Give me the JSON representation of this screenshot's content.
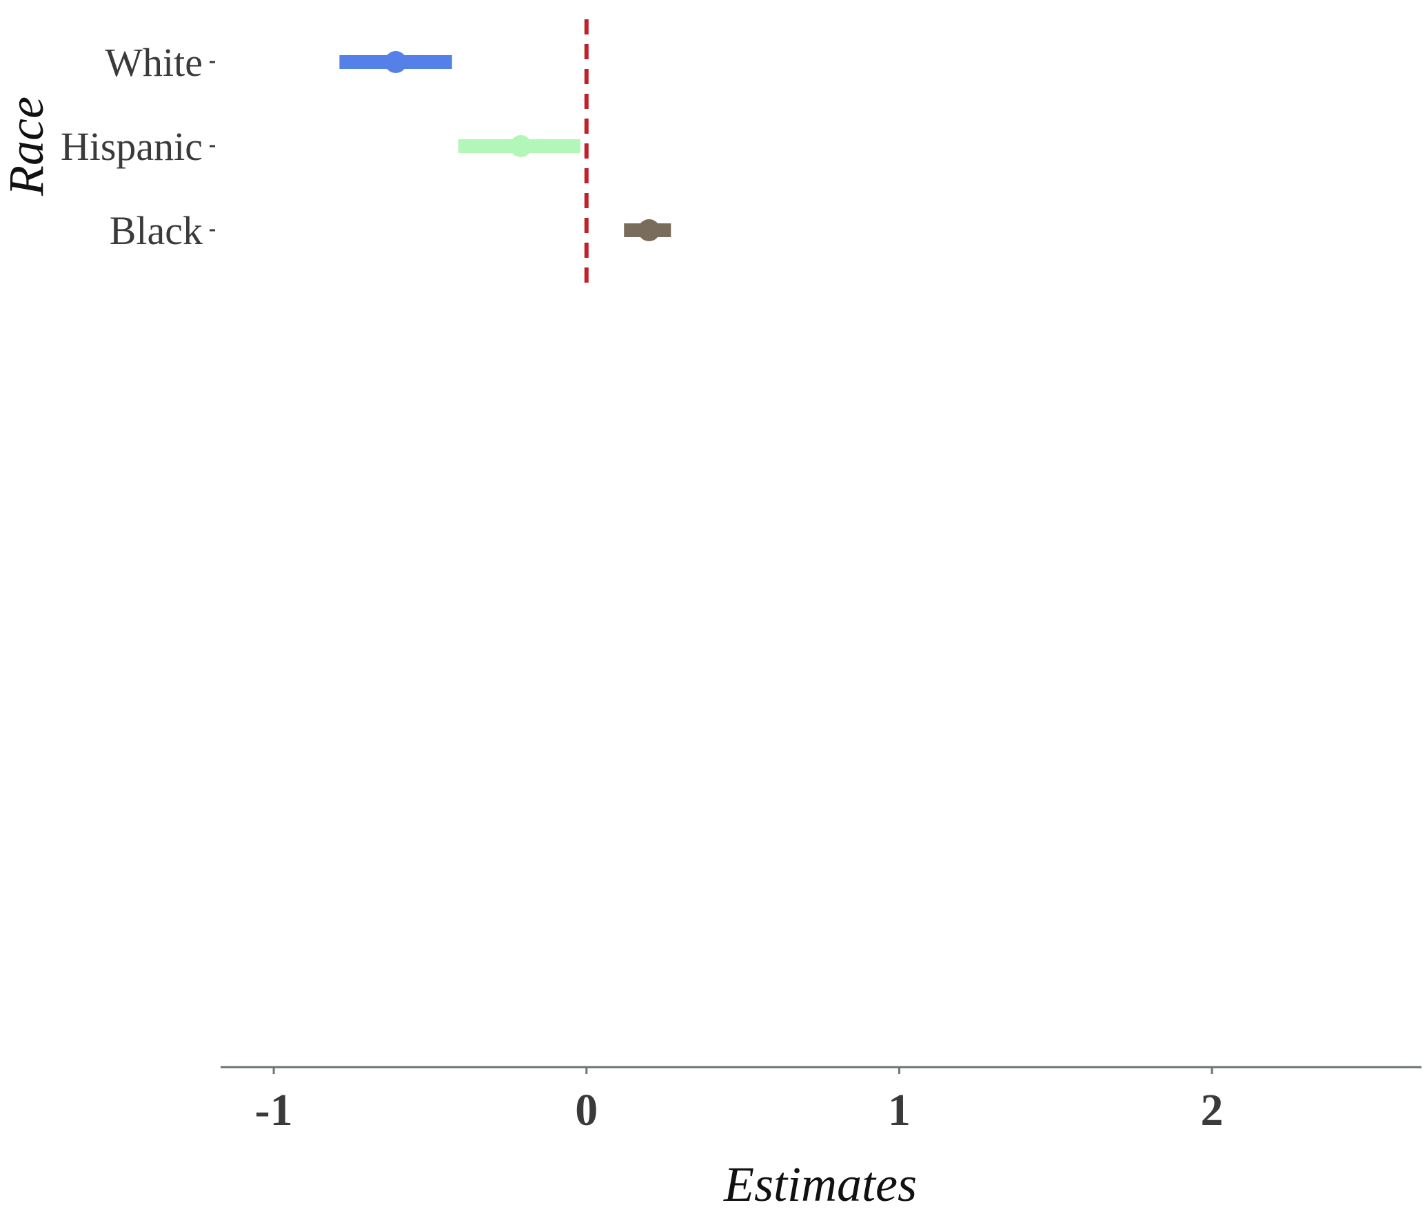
{
  "chart_data": {
    "type": "scatter",
    "subtype": "coefficient-plot",
    "xlabel": "Estimates",
    "ylabel": "Race",
    "xlim": [
      -1.17,
      2.67
    ],
    "x_ticks": [
      "-1",
      "0",
      "1",
      "2"
    ],
    "categories": [
      "White",
      "Hispanic",
      "Black"
    ],
    "series": [
      {
        "category": "White",
        "estimate": -0.61,
        "low": -0.79,
        "high": -0.43,
        "color": "#5580e8"
      },
      {
        "category": "Hispanic",
        "estimate": -0.21,
        "low": -0.41,
        "high": -0.02,
        "color": "#b3f7b8"
      },
      {
        "category": "Black",
        "estimate": 0.2,
        "low": 0.12,
        "high": 0.27,
        "color": "#7a6c5a"
      }
    ],
    "reference_line": {
      "x": 0,
      "color": "#c0202a",
      "style": "dashed"
    },
    "grid": false,
    "legend": "none"
  }
}
